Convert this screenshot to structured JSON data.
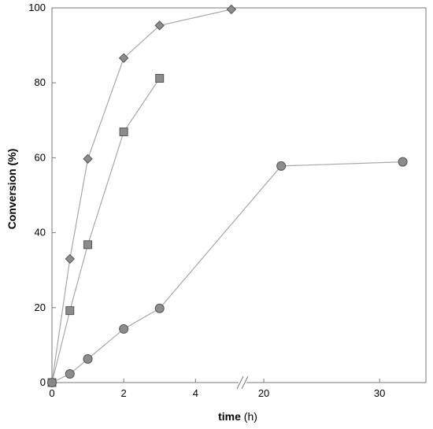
{
  "chart_data": {
    "type": "scatter",
    "ylabel": "Conversion (%)",
    "xlabel_bold": "time",
    "xlabel_unit": " (h)",
    "ylim": [
      0,
      100
    ],
    "xlim_segments": [
      [
        0,
        5.2
      ],
      [
        18.5,
        34
      ]
    ],
    "axis_break_between": [
      5.2,
      18.5
    ],
    "grid": false,
    "legend": "none",
    "x_ticks": [
      0,
      2,
      4,
      20,
      30
    ],
    "y_ticks": [
      0,
      20,
      40,
      60,
      80,
      100
    ],
    "series": [
      {
        "marker": "diamond",
        "x": [
          0,
          0.5,
          1,
          2,
          3,
          5
        ],
        "y": [
          0,
          33,
          59.7,
          86.6,
          95.3,
          99.6
        ]
      },
      {
        "marker": "square",
        "x": [
          0,
          0.5,
          1,
          2,
          3
        ],
        "y": [
          0,
          19.2,
          36.8,
          66.9,
          81.2
        ]
      },
      {
        "marker": "circle",
        "x": [
          0,
          0.5,
          1,
          2,
          3,
          21.5,
          32
        ],
        "y": [
          0,
          2.3,
          6.3,
          14.3,
          19.8,
          57.8,
          58.9
        ]
      }
    ],
    "colors": {
      "marker_fill": "#8c8c8c",
      "marker_stroke": "#555555",
      "line": "#a8a8a8",
      "frame": "#777777"
    }
  }
}
